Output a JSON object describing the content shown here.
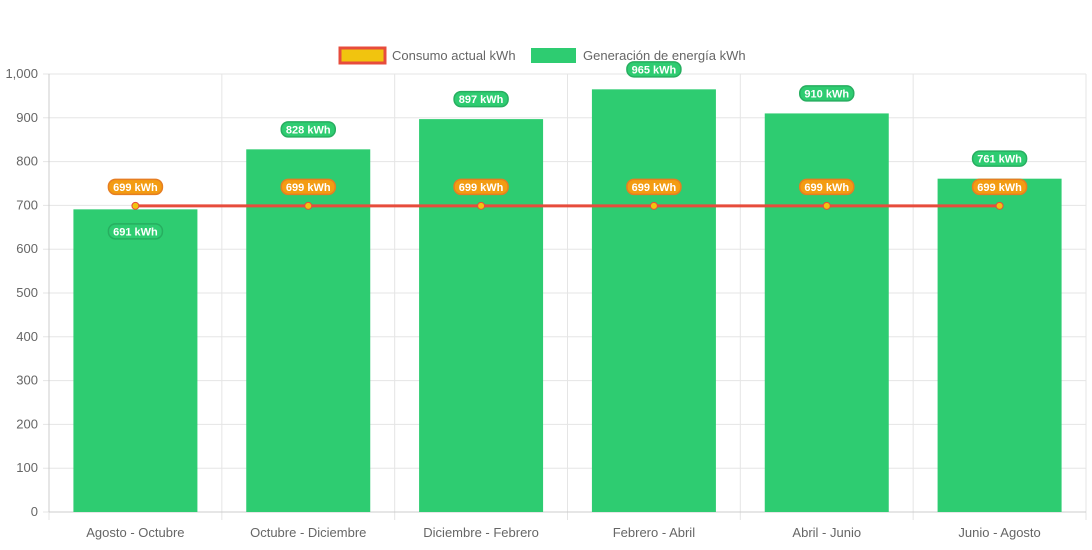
{
  "chart_data": {
    "type": "bar",
    "categories": [
      "Agosto - Octubre",
      "Octubre - Diciembre",
      "Diciembre - Febrero",
      "Febrero - Abril",
      "Abril - Junio",
      "Junio - Agosto"
    ],
    "series": [
      {
        "name": "Consumo actual kWh",
        "type": "line",
        "values": [
          699,
          699,
          699,
          699,
          699,
          699
        ],
        "labels": [
          "699 kWh",
          "699 kWh",
          "699 kWh",
          "699 kWh",
          "699 kWh",
          "699 kWh"
        ],
        "color": "#e74c3c",
        "fill": "#f1c40f"
      },
      {
        "name": "Generación de energía kWh",
        "type": "bar",
        "values": [
          691,
          828,
          897,
          965,
          910,
          761
        ],
        "labels": [
          "691 kWh",
          "828 kWh",
          "897 kWh",
          "965 kWh",
          "910 kWh",
          "761 kWh"
        ],
        "color": "#2ecc71"
      }
    ],
    "yticks": [
      "0",
      "100",
      "200",
      "300",
      "400",
      "500",
      "600",
      "700",
      "800",
      "900",
      "1,000"
    ],
    "ylim": [
      0,
      1000
    ],
    "grid": true,
    "legend": "top-center"
  }
}
